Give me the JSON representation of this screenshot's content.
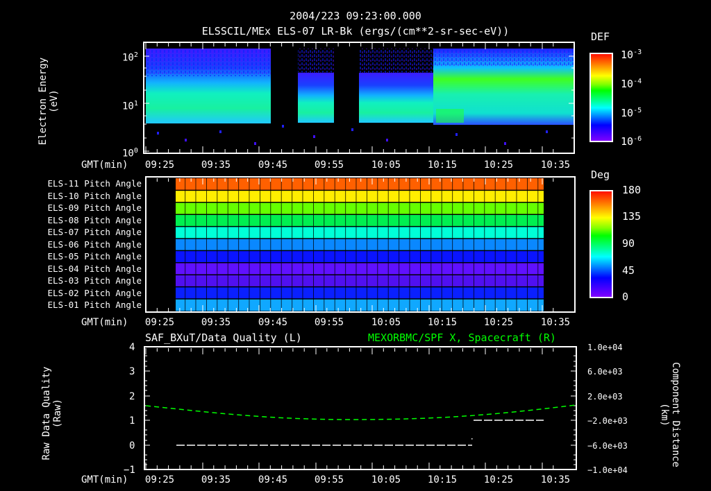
{
  "header": {
    "timestamp": "2004/223 09:23:00.000",
    "dataset_title": "ELSSCIL/MEx ELS-07 LR-Bk  (ergs/(cm**2-sr-sec-eV))"
  },
  "panel1": {
    "ylabel_line1": "Electron Energy",
    "ylabel_line2": "(eV)",
    "xlabel": "GMT(min)",
    "y_ticks": [
      {
        "base": "10",
        "exp": "2"
      },
      {
        "base": "10",
        "exp": "1"
      },
      {
        "base": "10",
        "exp": "0"
      }
    ],
    "colorbar": {
      "title": "DEF",
      "ticks": [
        {
          "base": "10",
          "exp": "-3"
        },
        {
          "base": "10",
          "exp": "-4"
        },
        {
          "base": "10",
          "exp": "-5"
        },
        {
          "base": "10",
          "exp": "-6"
        }
      ]
    }
  },
  "panel2": {
    "xlabel": "GMT(min)",
    "row_labels": [
      "ELS-11 Pitch Angle",
      "ELS-10 Pitch Angle",
      "ELS-09 Pitch Angle",
      "ELS-08 Pitch Angle",
      "ELS-07 Pitch Angle",
      "ELS-06 Pitch Angle",
      "ELS-05 Pitch Angle",
      "ELS-04 Pitch Angle",
      "ELS-03 Pitch Angle",
      "ELS-02 Pitch Angle",
      "ELS-01 Pitch Angle"
    ],
    "colorbar": {
      "title": "Deg",
      "ticks": [
        "180",
        "135",
        "90",
        "45",
        "0"
      ]
    }
  },
  "panel3": {
    "left_title": "SAF_BXuT/Data Quality (L)",
    "right_title": "MEXORBMC/SPF X, Spacecraft (R)",
    "right_title_color": "#00ff00",
    "ylabel_left_line1": "Raw Data Quality",
    "ylabel_left_line2": "(Raw)",
    "ylabel_right_line1": "Component Distance",
    "ylabel_right_line2": "(km)",
    "xlabel": "GMT(min)",
    "left_ticks": [
      "4",
      "3",
      "2",
      "1",
      "0",
      "−1"
    ],
    "right_ticks": [
      "1.0e+04",
      "6.0e+03",
      "2.0e+03",
      "−2.0e+03",
      "−6.0e+03",
      "−1.0e+04"
    ]
  },
  "x_ticks": [
    "09:25",
    "09:35",
    "09:45",
    "09:55",
    "10:05",
    "10:15",
    "10:25",
    "10:35"
  ],
  "chart_data": [
    {
      "type": "heatmap",
      "title": "ELSSCIL/MEx ELS-07 LR-Bk (ergs/(cm**2-sr-sec-eV))",
      "xlabel": "GMT(min)",
      "ylabel": "Electron Energy (eV)",
      "yscale": "log",
      "ylim": [
        1,
        150
      ],
      "x_ticks": [
        "09:25",
        "09:35",
        "09:45",
        "09:55",
        "10:05",
        "10:15",
        "10:25",
        "10:35"
      ],
      "colorbar": {
        "label": "DEF",
        "scale": "log",
        "range": [
          1e-06,
          0.001
        ]
      },
      "data_gaps": [
        [
          "09:43",
          "09:48"
        ],
        [
          "09:50",
          "10:00"
        ]
      ],
      "description": "Electron differential energy flux spectrogram; peak flux ~4-20 eV, enhanced 20-60 eV band after 10:19"
    },
    {
      "type": "heatmap",
      "title": "ELS Pitch Angle",
      "xlabel": "GMT(min)",
      "categories": [
        "ELS-11",
        "ELS-10",
        "ELS-09",
        "ELS-08",
        "ELS-07",
        "ELS-06",
        "ELS-05",
        "ELS-04",
        "ELS-03",
        "ELS-02",
        "ELS-01"
      ],
      "colorbar": {
        "label": "Deg",
        "range": [
          0,
          180
        ]
      },
      "time_range": [
        "09:28",
        "10:33"
      ],
      "approx_values_deg": [
        160,
        128,
        108,
        95,
        78,
        55,
        32,
        18,
        15,
        30,
        52
      ]
    },
    {
      "type": "line",
      "title": "SAF_BXuT/Data Quality (L) ; MEXORBMC/SPF X, Spacecraft (R)",
      "xlabel": "GMT(min)",
      "ylabel_left": "Raw Data Quality (Raw)",
      "ylabel_right": "Component Distance (km)",
      "ylim_left": [
        -1,
        4
      ],
      "ylim_right": [
        -10000,
        10000
      ],
      "series": [
        {
          "name": "Data Quality (L)",
          "color": "#ffffff",
          "x": [
            "09:28",
            "10:20",
            "10:20",
            "10:33"
          ],
          "values": [
            0,
            0,
            1,
            1
          ]
        },
        {
          "name": "MEXORBMC/SPF X (R)",
          "color": "#00ff00",
          "x": [
            "09:23",
            "09:35",
            "09:45",
            "09:55",
            "10:05",
            "10:15",
            "10:25",
            "10:35",
            "10:39"
          ],
          "values": [
            2300,
            1000,
            -500,
            -1600,
            -1700,
            -1000,
            0,
            1500,
            2200
          ]
        }
      ]
    }
  ]
}
